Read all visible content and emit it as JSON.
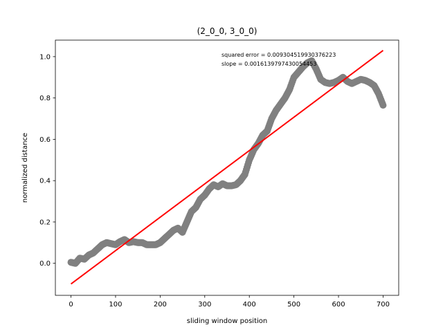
{
  "chart_data": {
    "type": "scatter",
    "title": "(2_0_0, 3_0_0)",
    "xlabel": "sliding window position",
    "ylabel": "normalized distance",
    "xlim": [
      -35,
      735
    ],
    "ylim": [
      -0.155,
      1.08
    ],
    "xticks": [
      0,
      100,
      200,
      300,
      400,
      500,
      600,
      700
    ],
    "yticks": [
      0.0,
      0.2,
      0.4,
      0.6,
      0.8,
      1.0
    ],
    "xtick_labels": [
      "0",
      "100",
      "200",
      "300",
      "400",
      "500",
      "600",
      "700"
    ],
    "ytick_labels": [
      "0.0",
      "0.2",
      "0.4",
      "0.6",
      "0.8",
      "1.0"
    ],
    "grid": false,
    "annotations": [
      "squared error = 0.009304519930376223",
      "slope = 0.0016139797430054453"
    ],
    "series": [
      {
        "kind": "scatter",
        "color": "#808080",
        "points": [
          [
            0,
            0.005
          ],
          [
            10,
            0.0
          ],
          [
            20,
            0.025
          ],
          [
            30,
            0.02
          ],
          [
            40,
            0.04
          ],
          [
            50,
            0.05
          ],
          [
            60,
            0.07
          ],
          [
            70,
            0.09
          ],
          [
            80,
            0.1
          ],
          [
            90,
            0.095
          ],
          [
            100,
            0.09
          ],
          [
            110,
            0.105
          ],
          [
            120,
            0.115
          ],
          [
            130,
            0.1
          ],
          [
            140,
            0.105
          ],
          [
            150,
            0.1
          ],
          [
            160,
            0.1
          ],
          [
            170,
            0.09
          ],
          [
            180,
            0.09
          ],
          [
            190,
            0.09
          ],
          [
            200,
            0.1
          ],
          [
            210,
            0.12
          ],
          [
            220,
            0.14
          ],
          [
            230,
            0.16
          ],
          [
            240,
            0.17
          ],
          [
            250,
            0.15
          ],
          [
            260,
            0.2
          ],
          [
            270,
            0.25
          ],
          [
            280,
            0.27
          ],
          [
            290,
            0.31
          ],
          [
            300,
            0.33
          ],
          [
            310,
            0.36
          ],
          [
            320,
            0.38
          ],
          [
            330,
            0.37
          ],
          [
            340,
            0.385
          ],
          [
            350,
            0.375
          ],
          [
            360,
            0.375
          ],
          [
            370,
            0.38
          ],
          [
            380,
            0.4
          ],
          [
            390,
            0.43
          ],
          [
            400,
            0.5
          ],
          [
            410,
            0.55
          ],
          [
            420,
            0.58
          ],
          [
            430,
            0.62
          ],
          [
            440,
            0.64
          ],
          [
            450,
            0.7
          ],
          [
            460,
            0.74
          ],
          [
            470,
            0.77
          ],
          [
            480,
            0.8
          ],
          [
            490,
            0.84
          ],
          [
            500,
            0.9
          ],
          [
            510,
            0.925
          ],
          [
            520,
            0.95
          ],
          [
            530,
            0.97
          ],
          [
            540,
            0.98
          ],
          [
            550,
            0.94
          ],
          [
            560,
            0.89
          ],
          [
            570,
            0.875
          ],
          [
            580,
            0.87
          ],
          [
            590,
            0.875
          ],
          [
            600,
            0.885
          ],
          [
            610,
            0.9
          ],
          [
            620,
            0.88
          ],
          [
            630,
            0.87
          ],
          [
            640,
            0.88
          ],
          [
            650,
            0.89
          ],
          [
            660,
            0.885
          ],
          [
            670,
            0.875
          ],
          [
            680,
            0.86
          ],
          [
            690,
            0.82
          ],
          [
            700,
            0.765
          ]
        ]
      },
      {
        "kind": "line",
        "color": "#ff0000",
        "points": [
          [
            0,
            -0.1
          ],
          [
            700,
            1.03
          ]
        ]
      }
    ]
  }
}
